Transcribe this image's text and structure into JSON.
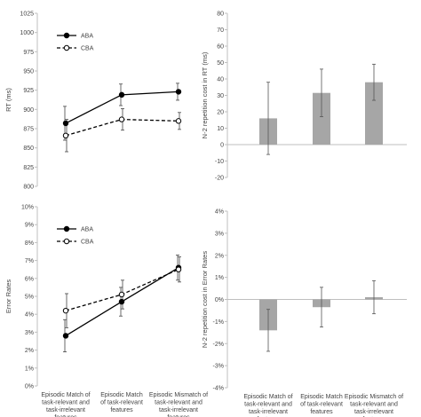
{
  "chart_data": [
    {
      "type": "line",
      "ylabel": "RT (ms)",
      "ylim": [
        800,
        1025
      ],
      "yticks": [
        "800",
        "825",
        "850",
        "875",
        "900",
        "925",
        "950",
        "975",
        "1000",
        "1025"
      ],
      "categories": [
        "",
        "",
        ""
      ],
      "legend": "top-left",
      "series": [
        {
          "name": "ABA",
          "marker": "filled-circle",
          "line": "solid",
          "values": [
            882,
            919,
            923
          ],
          "errors": [
            22,
            14,
            11
          ]
        },
        {
          "name": "CBA",
          "marker": "open-circle",
          "line": "dashed",
          "values": [
            866,
            887,
            885
          ],
          "errors": [
            21,
            14,
            11
          ]
        }
      ]
    },
    {
      "type": "bar",
      "ylabel": "N-2 repetition cost in RT (ms)",
      "ylim": [
        -20,
        80
      ],
      "yticks": [
        "-20",
        "-10",
        "0",
        "10",
        "20",
        "30",
        "40",
        "50",
        "60",
        "70",
        "80"
      ],
      "categories": [
        "",
        "",
        ""
      ],
      "values": [
        16,
        31.5,
        38
      ],
      "errors": [
        22,
        14.5,
        11
      ],
      "color": "#a6a6a6"
    },
    {
      "type": "line",
      "ylabel": "Error Rates",
      "ylim": [
        0,
        10
      ],
      "yticks": [
        "0%",
        "1%",
        "2%",
        "3%",
        "4%",
        "5%",
        "6%",
        "7%",
        "8%",
        "9%",
        "10%"
      ],
      "categories": [
        "Episodic Match of task-relevant and task-irrelevant features",
        "Episodic Match of task-relevant features",
        "Episodic Mismatch of task-relevant and task-irrelevant features"
      ],
      "legend": "top-left",
      "series": [
        {
          "name": "ABA",
          "marker": "filled-circle",
          "line": "solid",
          "values": [
            2.8,
            4.7,
            6.6
          ],
          "errors": [
            0.9,
            0.8,
            0.7
          ]
        },
        {
          "name": "CBA",
          "marker": "open-circle",
          "line": "dashed",
          "values": [
            4.2,
            5.1,
            6.5
          ],
          "errors": [
            0.95,
            0.8,
            0.7
          ]
        }
      ]
    },
    {
      "type": "bar",
      "ylabel": "N-2 repetition cost in Error Rates",
      "ylim": [
        -4,
        4
      ],
      "yticks": [
        "-4%",
        "-3%",
        "-2%",
        "-1%",
        "0%",
        "1%",
        "2%",
        "3%",
        "4%"
      ],
      "categories": [
        "Episodic Match of task-relevant and task-irrelevant features",
        "Episodic Match of task-relevant features",
        "Episodic Mismatch of task-relevant and task-irrelevant features"
      ],
      "values": [
        -1.4,
        -0.35,
        0.1
      ],
      "errors": [
        0.95,
        0.9,
        0.75
      ],
      "color": "#a6a6a6"
    }
  ]
}
